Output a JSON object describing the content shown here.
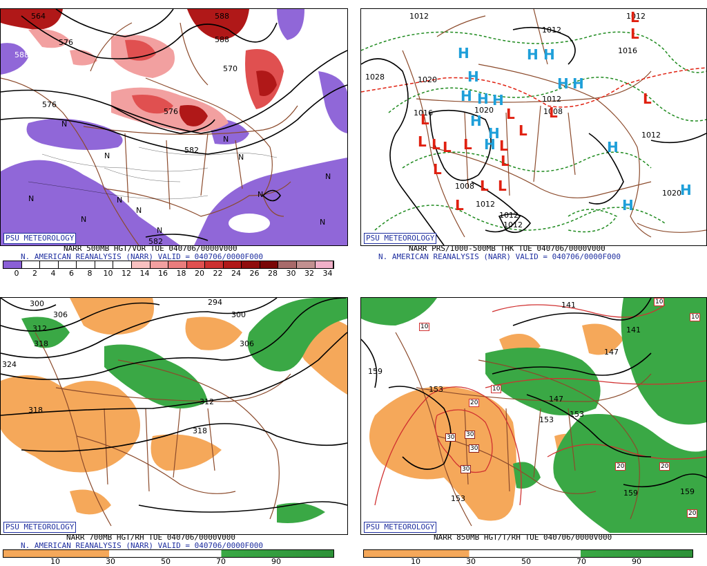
{
  "branding": "PSU METEOROLOGY",
  "colors": {
    "vort_low": "#8a5fd6",
    "vort_high_light": "#f2a0a0",
    "vort_high": "#e05050",
    "vort_high_dark": "#b01818",
    "map_lines": "#8b4a2b",
    "contours": "#000000",
    "dry_orange": "#f5a85a",
    "moist_green": "#3aa845",
    "high_symbol": "#1e9fd9",
    "low_symbol": "#e02010",
    "thickness_green": "#1e8a1e",
    "thickness_red": "#e02010",
    "temp_red": "#d03030"
  },
  "panels": [
    {
      "id": "500mb",
      "title_line": "NARR 500MB HGT/VOR TUE 040706/0000V000",
      "valid_line": "N. AMERICAN REANALYSIS (NARR) VALID = 040706/0000F000",
      "colorbar_ticks": [
        "0",
        "2",
        "4",
        "6",
        "8",
        "10",
        "12",
        "14",
        "16",
        "18",
        "20",
        "22",
        "24",
        "26",
        "28",
        "30",
        "32",
        "34"
      ],
      "colorbar_colors": [
        "#8a5fd6",
        "#ffffff",
        "#ffffff",
        "#ffffff",
        "#ffffff",
        "#ffffff",
        "#ffffff",
        "#f8c0c0",
        "#f2a0a0",
        "#ea7d7d",
        "#e05050",
        "#cc3030",
        "#b01818",
        "#900d0d",
        "#7a0606",
        "#a86a6a",
        "#c29090",
        "#f0b0c8"
      ],
      "contour_labels": [
        "564",
        "576",
        "588",
        "588",
        "588",
        "570",
        "582",
        "582",
        "576",
        "576"
      ],
      "markers": [
        "N",
        "N",
        "N",
        "N",
        "N",
        "N",
        "N",
        "N",
        "N",
        "N",
        "N",
        "N"
      ]
    },
    {
      "id": "thickness",
      "title_line": "NARR PRS/1000-500MB THK TUE 040706/0000V000",
      "valid_line": "N. AMERICAN REANALYSIS (NARR) VALID = 040706/0000F000",
      "isobar_labels": [
        "1012",
        "1012",
        "1028",
        "1020",
        "1016",
        "1020",
        "1012",
        "1012",
        "1008",
        "1016",
        "1012",
        "1012",
        "1008",
        "1012",
        "1012",
        "1020"
      ],
      "highs": [
        "H",
        "H",
        "H",
        "H",
        "H",
        "H",
        "H",
        "H",
        "H",
        "H",
        "H",
        "H",
        "H",
        "H",
        "H"
      ],
      "lows": [
        "L",
        "L",
        "L",
        "L",
        "L",
        "L",
        "L",
        "L",
        "L",
        "L",
        "L",
        "L",
        "L",
        "L",
        "L",
        "L",
        "L"
      ]
    },
    {
      "id": "700mb",
      "title_line": "NARR 700MB HGT/RH TUE 040706/0000V000",
      "valid_line": "N. AMERICAN REANALYSIS (NARR) VALID = 040706/0000F000",
      "colorbar_ticks": [
        "10",
        "30",
        "50",
        "70",
        "90"
      ],
      "contour_labels": [
        "300",
        "306",
        "312",
        "318",
        "324",
        "294",
        "300",
        "306",
        "318",
        "312",
        "318"
      ]
    },
    {
      "id": "850mb",
      "title_line": "NARR 850MB HGT/T/RH TUE 040706/0000V000",
      "valid_line": "",
      "colorbar_ticks": [
        "10",
        "30",
        "50",
        "70",
        "90"
      ],
      "contour_labels": [
        "141",
        "141",
        "147",
        "147",
        "153",
        "153",
        "153",
        "159",
        "159",
        "153",
        "159"
      ],
      "temp_labels": [
        "10",
        "10",
        "10",
        "10",
        "20",
        "20",
        "20",
        "30",
        "30",
        "30",
        "30",
        "20"
      ]
    }
  ]
}
